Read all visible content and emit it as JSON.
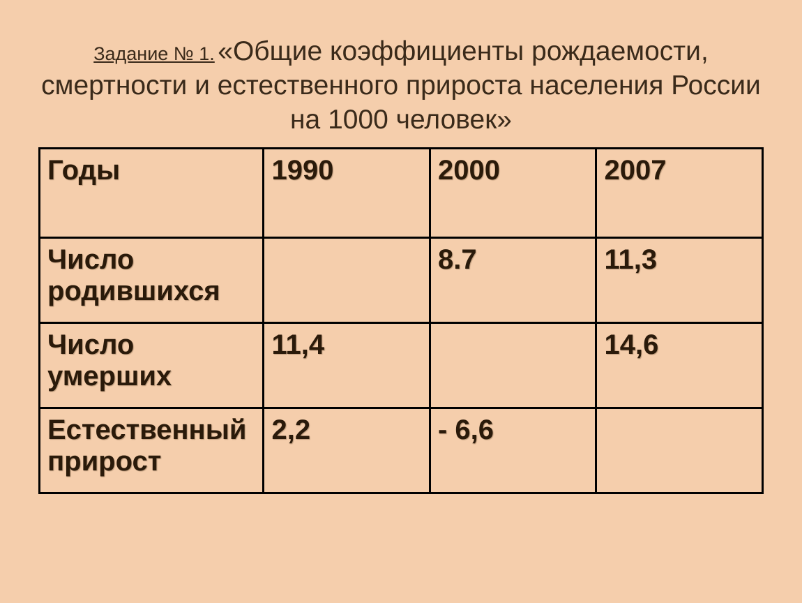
{
  "header": {
    "task_label": "Задание № 1.",
    "title": "«Общие коэффициенты рождаемости, смертности и естественного прироста населения России на 1000 человек»"
  },
  "table": {
    "columns": [
      "Годы",
      "1990",
      "2000",
      "2007"
    ],
    "rows": [
      {
        "label": "Число родившихся",
        "values": [
          "",
          "8.7",
          "11,3"
        ]
      },
      {
        "label": "Число умерших",
        "values": [
          "11,4",
          "",
          "14,6"
        ]
      },
      {
        "label": "Естественный прирост",
        "values": [
          "2,2",
          "- 6,6",
          ""
        ]
      }
    ],
    "styling": {
      "background_color": "#f5ceac",
      "border_color": "#000000",
      "border_width": 3,
      "text_color": "#2a1a0a",
      "header_font_size": 40,
      "cell_font_size": 40,
      "font_weight": "bold",
      "title_font_size": 39,
      "task_label_font_size": 27,
      "column_widths": [
        "31%",
        "23%",
        "23%",
        "23%"
      ]
    }
  }
}
